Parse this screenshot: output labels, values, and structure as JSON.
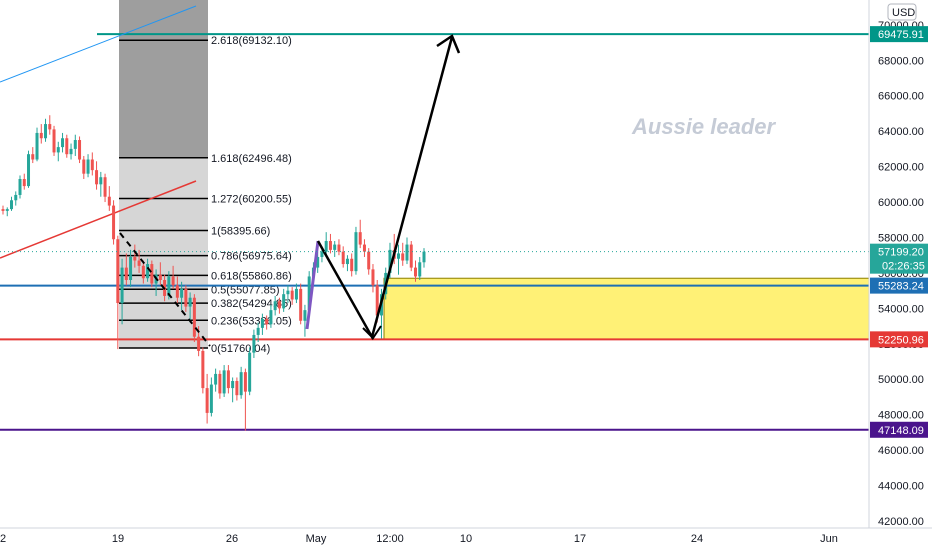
{
  "watermark": "Aussie leader",
  "currency": "USD",
  "colors": {
    "up": "#26a69a",
    "down": "#ef5350",
    "teal_line": "#009688",
    "blue_line": "#1e6fb4",
    "red_line": "#e53935",
    "purple_line": "#4a148c",
    "yellow_zone": "#fff176",
    "arrow": "#000000",
    "purple_arrow": "#7e57c2"
  },
  "chart_data": {
    "type": "candlestick",
    "y_axis": {
      "range": [
        41500,
        71500
      ],
      "ticks": [
        "42000.00",
        "44000.00",
        "46000.00",
        "48000.00",
        "50000.00",
        "52000.00",
        "54000.00",
        "56000.00",
        "58000.00",
        "60000.00",
        "62000.00",
        "64000.00",
        "66000.00",
        "68000.00",
        "70000.00"
      ]
    },
    "x_axis": {
      "ticks": [
        {
          "label": "2",
          "px": 3
        },
        {
          "label": "19",
          "px": 118
        },
        {
          "label": "26",
          "px": 232
        },
        {
          "label": "May",
          "px": 316
        },
        {
          "label": "12:00",
          "px": 390
        },
        {
          "label": "10",
          "px": 466
        },
        {
          "label": "17",
          "px": 580
        },
        {
          "label": "24",
          "px": 697
        },
        {
          "label": "Jun",
          "px": 829
        }
      ]
    },
    "price_labels": [
      {
        "text": "69475.91",
        "value": 69475.91,
        "color": "#009688"
      },
      {
        "text": "57199.20",
        "value": 57199.2,
        "color": "#26a69a",
        "sub": "02:26:35"
      },
      {
        "text": "55283.24",
        "value": 55283.24,
        "color": "#1e6fb4"
      },
      {
        "text": "52250.96",
        "value": 52250.96,
        "color": "#e53935"
      },
      {
        "text": "47148.09",
        "value": 47148.09,
        "color": "#4a148c"
      }
    ],
    "horizontal_lines": [
      {
        "value": 69475.91,
        "color": "#009688"
      },
      {
        "value": 55283.24,
        "color": "#1e6fb4"
      },
      {
        "value": 52250.96,
        "color": "#e53935"
      },
      {
        "value": 47148.09,
        "color": "#4a148c"
      }
    ],
    "fib_levels": [
      {
        "label": "2.618(69132.10)",
        "value": 69132.1
      },
      {
        "label": "1.618(62496.48)",
        "value": 62496.48
      },
      {
        "label": "1.272(60200.55)",
        "value": 60200.55
      },
      {
        "label": "1(58395.66)",
        "value": 58395.66
      },
      {
        "label": "0.786(56975.64)",
        "value": 56975.64
      },
      {
        "label": "0.618(55860.86)",
        "value": 55860.86
      },
      {
        "label": "0.5(55077.85)",
        "value": 55077.85
      },
      {
        "label": "0.382(54294.85)",
        "value": 54294.85
      },
      {
        "label": "0.236(53326.05)",
        "value": 53326.05
      },
      {
        "label": "0(51760.04)",
        "value": 51760.04
      }
    ],
    "demand_zone": {
      "top": 55700,
      "bottom": 52250.96
    },
    "candles": [
      [
        59600,
        59800,
        59300,
        59500
      ],
      [
        59500,
        59700,
        59200,
        59600
      ],
      [
        59600,
        60300,
        59500,
        60100
      ],
      [
        60100,
        60600,
        59800,
        60400
      ],
      [
        60400,
        61500,
        60200,
        61300
      ],
      [
        61300,
        61600,
        60700,
        60900
      ],
      [
        60900,
        62900,
        60800,
        62700
      ],
      [
        62700,
        63100,
        62200,
        62400
      ],
      [
        62400,
        64200,
        62300,
        63900
      ],
      [
        63900,
        64400,
        63300,
        63600
      ],
      [
        63600,
        64700,
        63400,
        64400
      ],
      [
        64400,
        64900,
        63800,
        64100
      ],
      [
        64100,
        64300,
        62600,
        62800
      ],
      [
        62800,
        63400,
        62300,
        63100
      ],
      [
        63100,
        63900,
        62800,
        63600
      ],
      [
        63600,
        63800,
        62500,
        62700
      ],
      [
        62700,
        63300,
        62400,
        63000
      ],
      [
        63000,
        63800,
        62600,
        63500
      ],
      [
        63500,
        63700,
        62200,
        62400
      ],
      [
        62400,
        62600,
        61300,
        61600
      ],
      [
        61600,
        62700,
        61400,
        62400
      ],
      [
        62400,
        62800,
        61500,
        61800
      ],
      [
        61800,
        62300,
        60700,
        61000
      ],
      [
        61000,
        61700,
        60300,
        61400
      ],
      [
        61400,
        61600,
        60000,
        60300
      ],
      [
        60300,
        60900,
        59500,
        59800
      ],
      [
        59800,
        60100,
        57600,
        57900
      ],
      [
        57900,
        58100,
        51700,
        54300
      ],
      [
        54300,
        56800,
        53100,
        56300
      ],
      [
        56300,
        57100,
        55300,
        55600
      ],
      [
        55600,
        57300,
        55200,
        56900
      ],
      [
        56900,
        57600,
        56300,
        56700
      ],
      [
        56700,
        57300,
        56000,
        56400
      ],
      [
        56400,
        56700,
        55400,
        55700
      ],
      [
        55700,
        56800,
        55500,
        56500
      ],
      [
        56500,
        56700,
        55200,
        55400
      ],
      [
        55400,
        56200,
        54700,
        55900
      ],
      [
        55900,
        56600,
        55300,
        55600
      ],
      [
        55600,
        55900,
        54400,
        54700
      ],
      [
        54700,
        56100,
        54500,
        55800
      ],
      [
        55800,
        56400,
        55100,
        55300
      ],
      [
        55300,
        55800,
        54300,
        54600
      ],
      [
        54600,
        55500,
        53900,
        55100
      ],
      [
        55100,
        55300,
        53800,
        54100
      ],
      [
        54100,
        54900,
        53200,
        54600
      ],
      [
        54600,
        54800,
        52100,
        52400
      ],
      [
        52400,
        53000,
        51300,
        51600
      ],
      [
        51600,
        51800,
        49200,
        49500
      ],
      [
        49500,
        50300,
        47500,
        48100
      ],
      [
        48100,
        50100,
        47900,
        49700
      ],
      [
        49700,
        50600,
        49300,
        50300
      ],
      [
        50300,
        50500,
        48900,
        49200
      ],
      [
        49200,
        50800,
        49000,
        50500
      ],
      [
        50500,
        50800,
        49200,
        49500
      ],
      [
        49500,
        50100,
        48700,
        49900
      ],
      [
        49900,
        50100,
        48800,
        49100
      ],
      [
        49100,
        50700,
        48900,
        50400
      ],
      [
        50400,
        50600,
        47100,
        49300
      ],
      [
        49300,
        51800,
        49100,
        51500
      ],
      [
        51500,
        52800,
        51200,
        52500
      ],
      [
        52500,
        53200,
        52100,
        52900
      ],
      [
        52900,
        53700,
        52500,
        53400
      ],
      [
        53400,
        53600,
        52800,
        53100
      ],
      [
        53100,
        54200,
        52900,
        53900
      ],
      [
        53900,
        54700,
        53600,
        54400
      ],
      [
        54400,
        54600,
        53700,
        54000
      ],
      [
        54000,
        55100,
        53800,
        54800
      ],
      [
        54800,
        55300,
        54300,
        55000
      ],
      [
        55000,
        55200,
        54200,
        54500
      ],
      [
        54500,
        55400,
        54300,
        55100
      ],
      [
        55100,
        55400,
        53100,
        53300
      ],
      [
        53300,
        54200,
        52400,
        53900
      ],
      [
        53900,
        56100,
        53700,
        55800
      ],
      [
        55800,
        56600,
        55400,
        56300
      ],
      [
        56300,
        57200,
        56000,
        56900
      ],
      [
        56900,
        57400,
        56600,
        57200
      ],
      [
        57200,
        58300,
        57000,
        57800
      ],
      [
        57800,
        58200,
        57100,
        57300
      ],
      [
        57300,
        57800,
        56900,
        57600
      ],
      [
        57600,
        57900,
        57000,
        57200
      ],
      [
        57200,
        57500,
        56300,
        56500
      ],
      [
        56500,
        57000,
        56100,
        56800
      ],
      [
        56800,
        57100,
        55800,
        56100
      ],
      [
        56100,
        58600,
        55900,
        58300
      ],
      [
        58300,
        59000,
        57400,
        57600
      ],
      [
        57600,
        57900,
        56900,
        57200
      ],
      [
        57200,
        57400,
        55900,
        56200
      ],
      [
        56200,
        56500,
        54900,
        55300
      ],
      [
        55300,
        55600,
        53200,
        53600
      ],
      [
        53600,
        55100,
        52300,
        54800
      ],
      [
        54800,
        56300,
        54500,
        56000
      ],
      [
        56000,
        57700,
        55700,
        57300
      ],
      [
        57300,
        58200,
        56500,
        56800
      ],
      [
        56800,
        57600,
        55900,
        57100
      ],
      [
        57100,
        57700,
        56400,
        56700
      ],
      [
        56700,
        58000,
        56500,
        57600
      ],
      [
        57600,
        57800,
        56100,
        56300
      ],
      [
        56300,
        56700,
        55500,
        55800
      ],
      [
        55800,
        56900,
        55600,
        56600
      ],
      [
        56600,
        57400,
        56300,
        57199.2
      ]
    ]
  }
}
